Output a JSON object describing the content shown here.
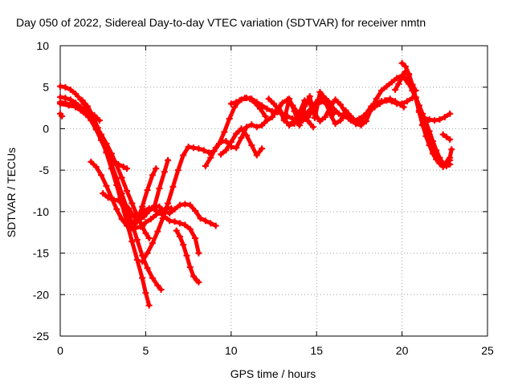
{
  "chart_data": {
    "type": "scatter",
    "title": "Day 050 of 2022, Sidereal Day-to-day VTEC variation (SDTVAR) for receiver nmtn",
    "xlabel": "GPS time / hours",
    "ylabel": "SDTVAR / TECUs",
    "xlim": [
      0,
      25
    ],
    "ylim": [
      -25,
      10
    ],
    "xticks": [
      0,
      5,
      10,
      15,
      20,
      25
    ],
    "yticks": [
      -25,
      -20,
      -15,
      -10,
      -5,
      0,
      5,
      10
    ],
    "grid": true,
    "legend": "none",
    "marker": "plus",
    "color": "#ff0000",
    "series": [
      {
        "x": [
          0.0,
          0.3,
          0.6,
          0.9,
          1.2,
          1.5,
          1.8,
          2.1,
          2.4,
          2.7,
          3.0,
          3.3,
          3.6,
          3.9,
          4.2,
          4.5,
          4.8,
          5.0,
          5.2
        ],
        "y": [
          5.1,
          5.0,
          4.7,
          4.2,
          3.5,
          2.6,
          1.6,
          0.3,
          -1.2,
          -2.9,
          -4.8,
          -6.8,
          -9.0,
          -11.3,
          -13.6,
          -15.8,
          -18.0,
          -19.8,
          -21.3
        ]
      },
      {
        "x": [
          0.0,
          0.3,
          0.6,
          0.9,
          1.2,
          1.5,
          1.8,
          2.1,
          2.4,
          2.7,
          3.0,
          3.3,
          3.6,
          3.9,
          4.2,
          4.5,
          4.8,
          5.1,
          5.4,
          5.7,
          5.9
        ],
        "y": [
          3.8,
          3.7,
          3.5,
          3.1,
          2.6,
          1.9,
          1.0,
          -0.1,
          -1.4,
          -2.8,
          -4.3,
          -6.0,
          -7.8,
          -9.6,
          -11.5,
          -13.4,
          -15.3,
          -16.8,
          -18.0,
          -18.9,
          -19.4
        ]
      },
      {
        "x": [
          0.0,
          0.3,
          0.6,
          0.9,
          1.2,
          1.5,
          1.8,
          2.1,
          2.4,
          2.7,
          3.0,
          3.3,
          3.6,
          3.9,
          4.2,
          4.5,
          4.8,
          5.0,
          5.2
        ],
        "y": [
          3.2,
          3.1,
          2.9,
          2.6,
          2.2,
          1.7,
          1.1,
          0.3,
          -0.7,
          -1.8,
          -3.0,
          -4.4,
          -5.9,
          -7.5,
          -9.0,
          -10.5,
          -11.8,
          -12.6,
          -13.2
        ]
      },
      {
        "x": [
          0.0,
          0.5,
          1.0,
          1.5,
          2.0,
          2.3
        ],
        "y": [
          3.0,
          2.8,
          2.6,
          2.2,
          1.6,
          1.0
        ]
      },
      {
        "x": [
          0.0,
          0.1
        ],
        "y": [
          1.8,
          1.5
        ]
      },
      {
        "x": [
          1.3,
          1.6,
          1.9,
          2.2,
          2.5,
          2.8,
          3.1,
          3.4,
          3.7,
          3.9
        ],
        "y": [
          3.4,
          2.7,
          1.6,
          0.1,
          -1.6,
          -2.9,
          -3.8,
          -4.3,
          -4.6,
          -4.8
        ]
      },
      {
        "x": [
          1.8,
          2.1,
          2.4,
          2.7,
          3.0,
          3.3,
          3.6,
          3.9,
          4.2,
          4.5,
          4.8,
          5.1,
          5.4,
          5.6
        ],
        "y": [
          -4.0,
          -4.6,
          -5.6,
          -6.9,
          -8.3,
          -9.7,
          -10.9,
          -11.7,
          -12.0,
          -11.2,
          -9.4,
          -7.4,
          -5.6,
          -4.8
        ]
      },
      {
        "x": [
          2.5,
          2.8,
          3.1,
          3.4,
          3.7,
          4.0,
          4.3,
          4.6,
          4.9,
          5.2,
          5.5,
          5.8,
          6.1,
          6.4,
          6.7,
          7.0,
          7.3,
          7.6,
          7.9,
          8.2
        ],
        "y": [
          -7.8,
          -8.3,
          -8.6,
          -8.6,
          -8.9,
          -9.6,
          -10.6,
          -11.0,
          -10.6,
          -9.9,
          -9.3,
          -9.4,
          -10.0,
          -10.2,
          -9.7,
          -9.2,
          -9.1,
          -9.2,
          -9.9,
          -10.8
        ]
      },
      {
        "x": [
          8.2,
          8.5,
          8.8,
          9.1
        ],
        "y": [
          -10.8,
          -11.1,
          -11.4,
          -11.7
        ]
      },
      {
        "x": [
          3.5,
          3.8,
          4.1,
          4.4,
          4.7,
          5.0,
          5.3,
          5.6,
          5.9,
          6.2,
          6.5
        ],
        "y": [
          -8.8,
          -10.0,
          -11.3,
          -12.0,
          -11.8,
          -11.3,
          -10.9,
          -10.4,
          -9.9,
          -9.6,
          -9.6
        ]
      },
      {
        "x": [
          4.0,
          4.3,
          4.6,
          4.9,
          5.2,
          5.5,
          5.8,
          6.1,
          6.4,
          6.7,
          7.0,
          7.3,
          7.6,
          7.9,
          8.1
        ],
        "y": [
          -11.5,
          -11.3,
          -10.7,
          -9.9,
          -9.6,
          -9.7,
          -10.1,
          -10.6,
          -11.1,
          -11.2,
          -11.4,
          -11.6,
          -12.1,
          -13.2,
          -15.0
        ]
      },
      {
        "x": [
          6.8,
          7.0,
          7.2,
          7.4,
          7.6,
          7.8,
          8.0,
          8.1
        ],
        "y": [
          -12.3,
          -13.0,
          -14.0,
          -15.3,
          -16.7,
          -17.8,
          -18.3,
          -18.5
        ]
      },
      {
        "x": [
          4.8,
          5.1,
          5.4,
          5.7,
          6.0,
          6.3,
          6.6,
          6.9,
          7.2,
          7.5,
          7.8,
          8.1,
          8.4,
          8.7,
          9.0,
          9.3,
          9.6,
          9.9,
          10.2,
          10.5,
          10.8,
          11.1,
          11.4,
          11.7,
          12.0
        ],
        "y": [
          -16.0,
          -15.0,
          -13.8,
          -12.4,
          -10.8,
          -9.0,
          -7.0,
          -5.0,
          -3.2,
          -2.2,
          -2.3,
          -2.4,
          -2.6,
          -2.9,
          -2.7,
          -1.8,
          -0.4,
          1.2,
          2.6,
          3.4,
          3.7,
          3.6,
          3.1,
          2.4,
          1.5
        ]
      },
      {
        "x": [
          5.5,
          5.8,
          6.1,
          6.3
        ],
        "y": [
          -9.5,
          -7.2,
          -5.2,
          -3.8
        ]
      },
      {
        "x": [
          8.5,
          8.8,
          9.1,
          9.4,
          9.7,
          10.0,
          10.3,
          10.6,
          10.9,
          11.2,
          11.5,
          11.8,
          12.1,
          12.4,
          12.7,
          13.0,
          13.3,
          13.6,
          13.9,
          14.2,
          14.5,
          14.8,
          15.1,
          15.4,
          15.7,
          16.0
        ],
        "y": [
          -4.5,
          -3.5,
          -2.3,
          -1.6,
          -1.5,
          -2.2,
          -2.3,
          -1.1,
          0.2,
          0.5,
          0.2,
          0.4,
          1.0,
          1.4,
          2.3,
          3.1,
          3.5,
          2.8,
          1.9,
          1.0,
          1.4,
          2.4,
          3.0,
          3.3,
          2.6,
          1.8
        ]
      },
      {
        "x": [
          9.4,
          9.7,
          10.0,
          10.3,
          10.6,
          10.9,
          11.2,
          11.5,
          11.8
        ],
        "y": [
          -3.1,
          -2.6,
          -1.6,
          -0.6,
          0.0,
          -0.8,
          -2.0,
          -3.2,
          -2.4
        ]
      },
      {
        "x": [
          10.0,
          10.3,
          10.6,
          10.9,
          11.2,
          11.5,
          11.8,
          12.1,
          12.4,
          12.7,
          13.0,
          13.3,
          13.6,
          13.9,
          14.2,
          14.5,
          14.8,
          15.1,
          15.4,
          15.7,
          16.0,
          16.3,
          16.6,
          16.9,
          17.2,
          17.5,
          17.8,
          18.1,
          18.4,
          18.7,
          19.0,
          19.3,
          19.6,
          19.9,
          20.1
        ],
        "y": [
          3.0,
          3.2,
          3.5,
          3.7,
          3.6,
          3.2,
          2.8,
          2.4,
          2.1,
          2.0,
          1.8,
          1.5,
          1.2,
          1.0,
          1.3,
          2.0,
          2.8,
          3.5,
          3.9,
          3.3,
          2.4,
          1.8,
          1.5,
          1.2,
          1.0,
          1.2,
          1.6,
          2.1,
          2.6,
          3.0,
          3.4,
          3.6,
          3.3,
          2.9,
          2.6
        ]
      },
      {
        "x": [
          12.2,
          12.5,
          12.8,
          13.1,
          13.4,
          13.7,
          14.0,
          14.3,
          14.6,
          14.9,
          15.2,
          15.5,
          15.8,
          16.1,
          16.4,
          16.7,
          17.0,
          17.3,
          17.6,
          17.9,
          18.2,
          18.5,
          18.8,
          19.1,
          19.4,
          19.7,
          20.0,
          20.3,
          20.6
        ],
        "y": [
          3.6,
          3.0,
          2.2,
          1.2,
          0.4,
          0.6,
          1.9,
          3.4,
          3.0,
          1.8,
          0.9,
          1.4,
          2.6,
          3.5,
          2.9,
          1.9,
          1.0,
          0.6,
          0.9,
          1.8,
          2.7,
          3.1,
          3.3,
          3.4,
          3.3,
          3.0,
          3.0,
          3.3,
          3.7
        ]
      },
      {
        "x": [
          12.5,
          12.8,
          13.1,
          13.4,
          13.7,
          14.0,
          14.3,
          14.6,
          14.9,
          15.2,
          15.5,
          15.8,
          16.1,
          16.4,
          16.7,
          17.0,
          17.3,
          17.6,
          17.9,
          18.2,
          18.5,
          18.8,
          19.1,
          19.4,
          19.7,
          20.0,
          20.3,
          20.6,
          20.8
        ],
        "y": [
          1.8,
          2.6,
          1.0,
          3.6,
          2.1,
          0.4,
          2.7,
          3.9,
          1.3,
          4.4,
          3.6,
          1.7,
          0.6,
          1.0,
          2.2,
          1.5,
          0.6,
          0.4,
          0.9,
          2.4,
          3.6,
          4.6,
          5.1,
          5.6,
          6.1,
          6.4,
          6.0,
          5.3,
          4.6
        ]
      },
      {
        "x": [
          13.6,
          13.9,
          14.2,
          14.5,
          14.8
        ],
        "y": [
          0.8,
          1.3,
          2.6,
          0.9,
          0.2
        ]
      },
      {
        "x": [
          19.6,
          19.8,
          20.0,
          20.2,
          20.4,
          20.6,
          20.8,
          21.0,
          21.2,
          21.4,
          21.6,
          21.8,
          22.0,
          22.2,
          22.4,
          22.6,
          22.8
        ],
        "y": [
          4.7,
          5.4,
          6.3,
          6.9,
          6.5,
          5.3,
          3.7,
          2.2,
          1.0,
          0.3,
          -0.7,
          -2.0,
          -3.2,
          -3.9,
          -4.3,
          -4.2,
          -3.8
        ]
      },
      {
        "x": [
          20.0,
          20.2,
          20.4,
          20.6,
          20.8,
          21.0,
          21.2,
          21.4,
          21.6,
          21.8,
          22.0,
          22.2,
          22.4,
          22.6,
          22.8
        ],
        "y": [
          7.9,
          7.5,
          6.6,
          5.3,
          3.7,
          2.0,
          0.5,
          -0.9,
          -2.0,
          -3.0,
          -3.7,
          -4.2,
          -4.4,
          -4.0,
          -3.5
        ]
      },
      {
        "x": [
          20.2,
          20.4,
          20.6,
          20.8,
          21.0,
          21.2,
          21.4,
          21.6,
          21.8,
          22.0,
          22.2,
          22.4,
          22.6,
          22.8
        ],
        "y": [
          5.9,
          5.4,
          4.6,
          3.8,
          2.8,
          1.8,
          0.8,
          -0.3,
          -1.5,
          -2.6,
          -3.5,
          -4.2,
          -4.5,
          -4.3
        ]
      },
      {
        "x": [
          21.3,
          21.6,
          21.9,
          22.2,
          22.5,
          22.8
        ],
        "y": [
          1.3,
          1.1,
          1.0,
          1.1,
          1.4,
          1.8
        ]
      },
      {
        "x": [
          21.2,
          21.5,
          21.8,
          22.1,
          22.4,
          22.7,
          22.9
        ],
        "y": [
          0.4,
          -1.1,
          -2.6,
          -3.7,
          -4.6,
          -4.3,
          -2.5
        ]
      },
      {
        "x": [
          22.4,
          22.6,
          22.8
        ],
        "y": [
          -0.7,
          -1.0,
          -1.3
        ]
      }
    ]
  }
}
